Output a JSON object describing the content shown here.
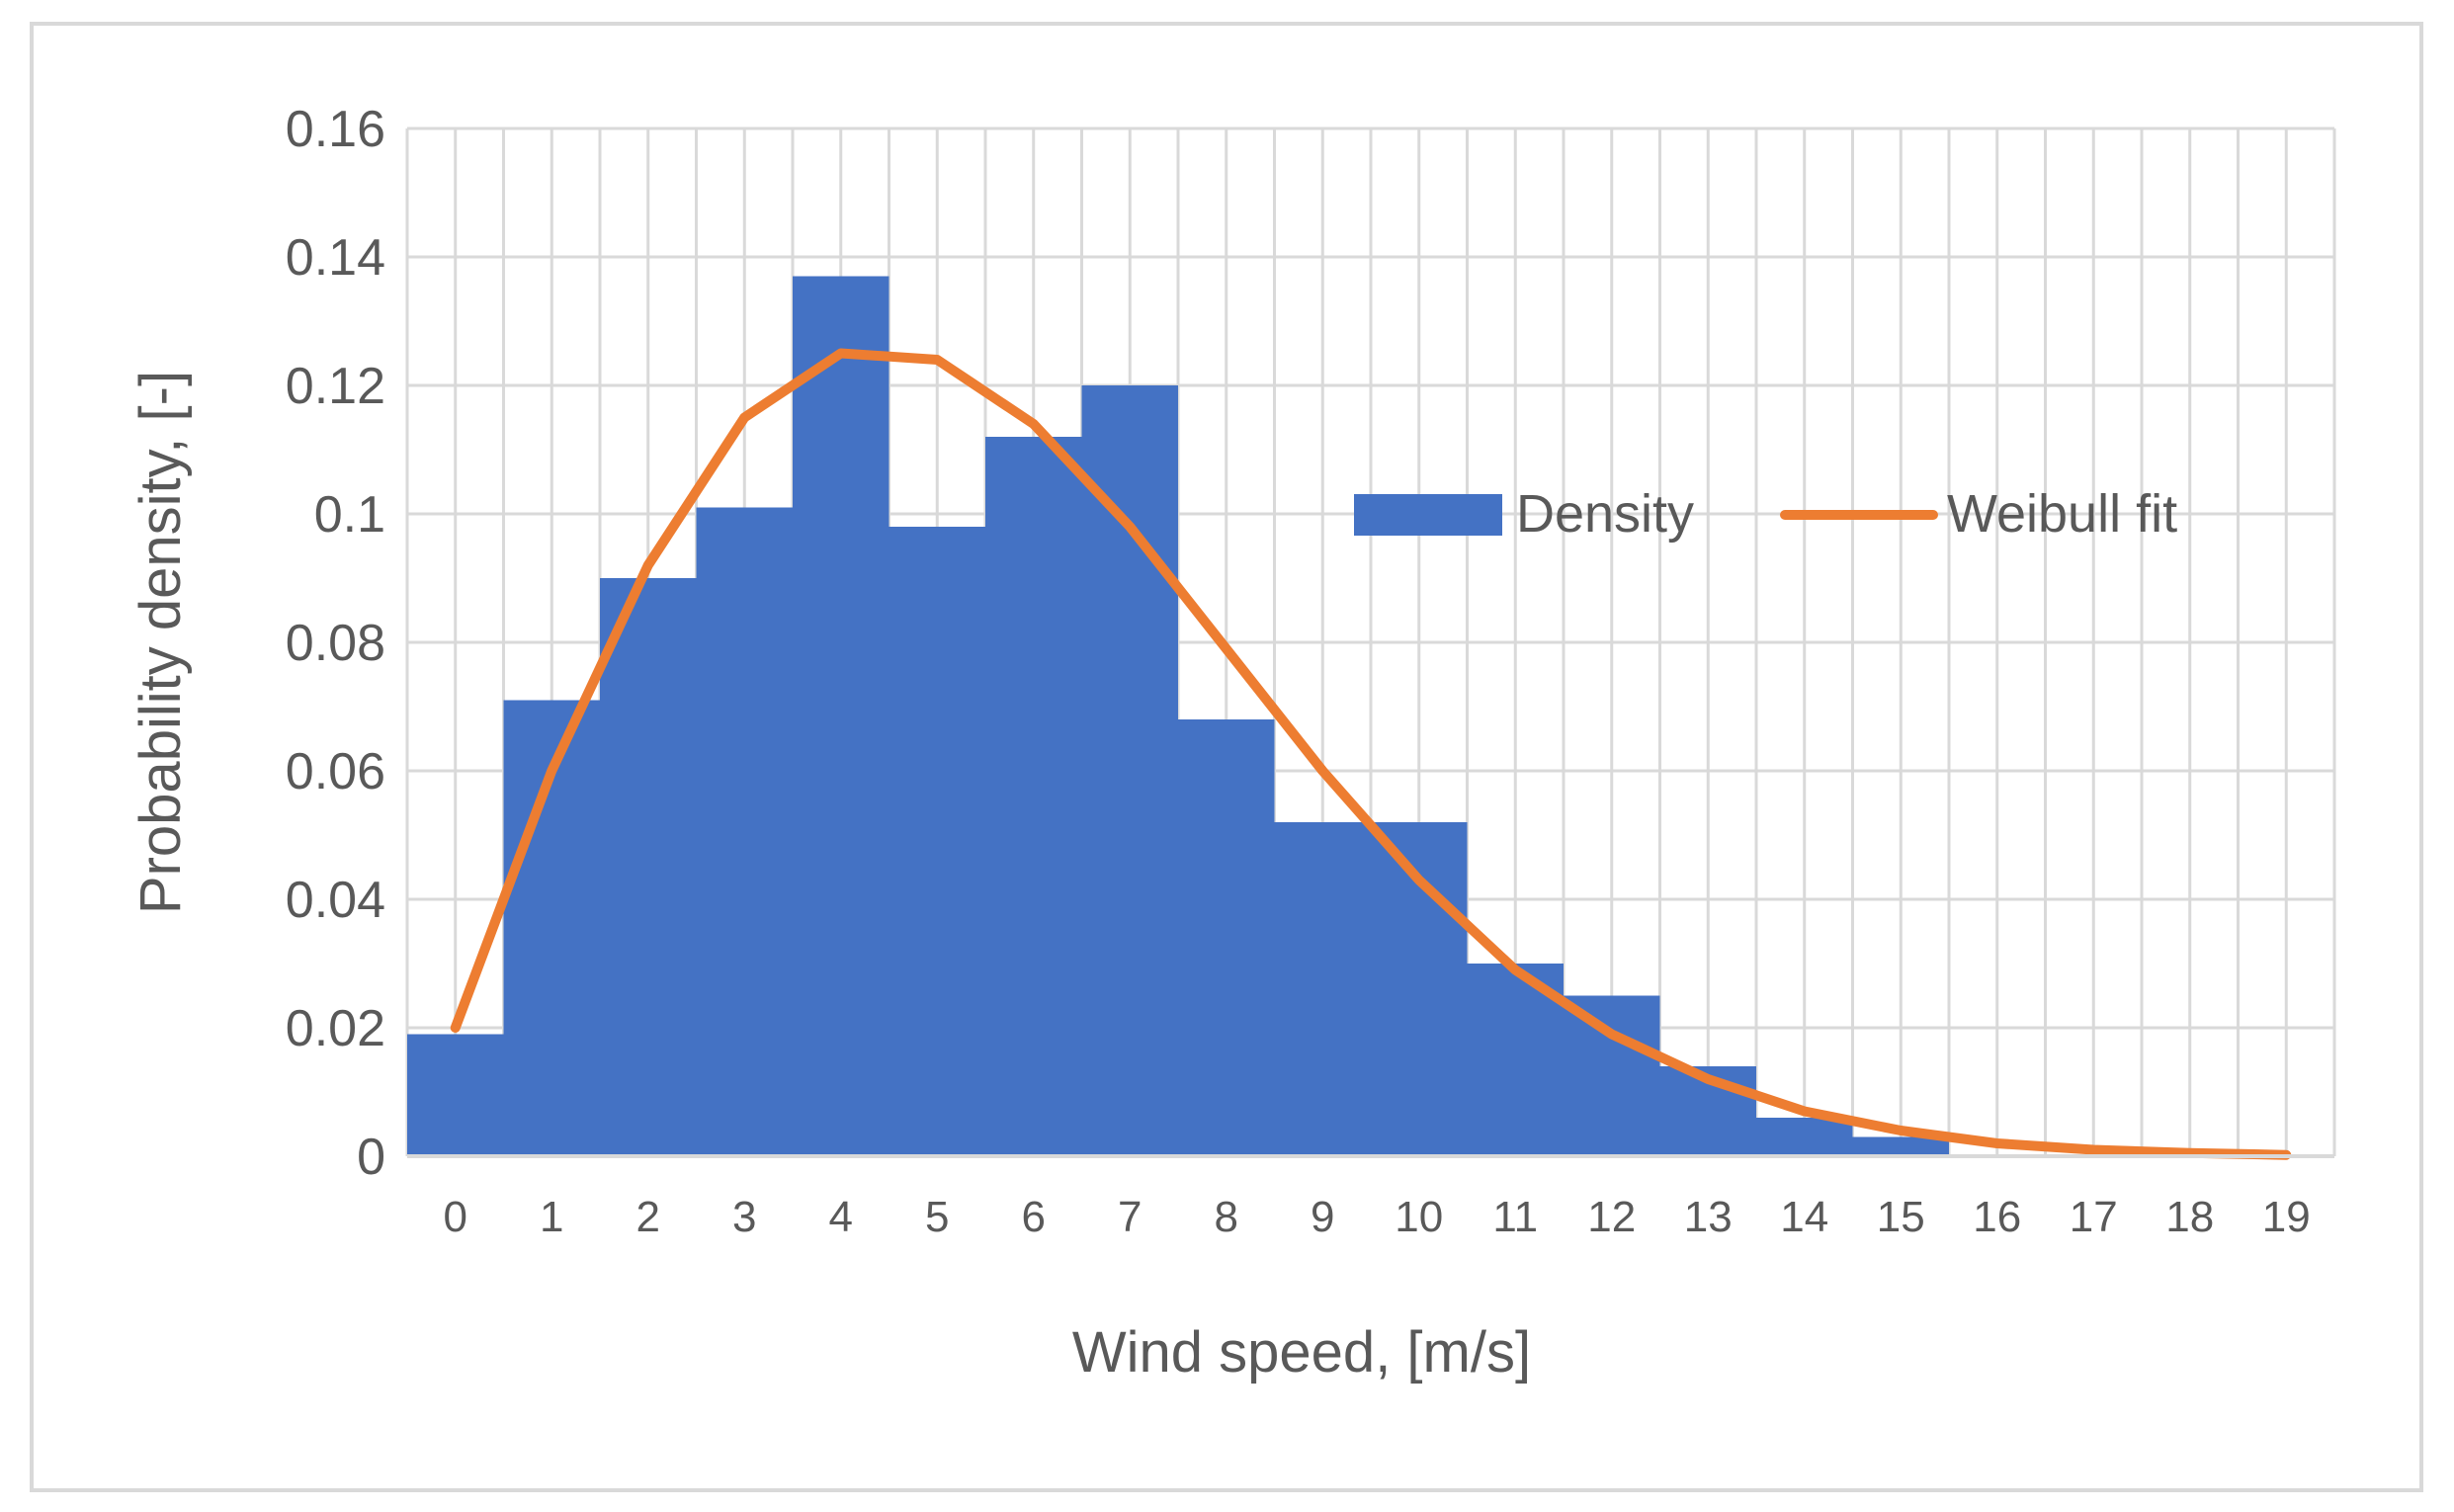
{
  "colors": {
    "bar": "#4472C4",
    "line": "#ED7D31",
    "grid": "#d9d9d9",
    "text": "#595959"
  },
  "chart_data": {
    "type": "bar",
    "title": "",
    "xlabel": "Wind speed, [m/s]",
    "ylabel": "Probability density, [-]",
    "categories": [
      "0",
      "1",
      "2",
      "3",
      "4",
      "5",
      "6",
      "7",
      "8",
      "9",
      "10",
      "11",
      "12",
      "13",
      "14",
      "15",
      "16",
      "17",
      "18",
      "19"
    ],
    "ylim": [
      0,
      0.16
    ],
    "yticks": [
      "0",
      "0.02",
      "0.04",
      "0.06",
      "0.08",
      "0.1",
      "0.12",
      "0.14",
      "0.16"
    ],
    "ytick_values": [
      0,
      0.02,
      0.04,
      0.06,
      0.08,
      0.1,
      0.12,
      0.14,
      0.16
    ],
    "grid": true,
    "legend_position": "middle-right",
    "series": [
      {
        "name": "Density",
        "type": "bar",
        "values": [
          0.019,
          0.071,
          0.09,
          0.101,
          0.137,
          0.098,
          0.112,
          0.12,
          0.068,
          0.052,
          0.052,
          0.03,
          0.025,
          0.014,
          0.006,
          0.003,
          0,
          0,
          0,
          0
        ]
      },
      {
        "name": "Weibull fit",
        "type": "line",
        "values": [
          0.02,
          0.06,
          0.092,
          0.115,
          0.125,
          0.124,
          0.114,
          0.098,
          0.079,
          0.06,
          0.043,
          0.029,
          0.019,
          0.012,
          0.007,
          0.004,
          0.002,
          0.001,
          0.0005,
          0.0002
        ]
      }
    ]
  }
}
